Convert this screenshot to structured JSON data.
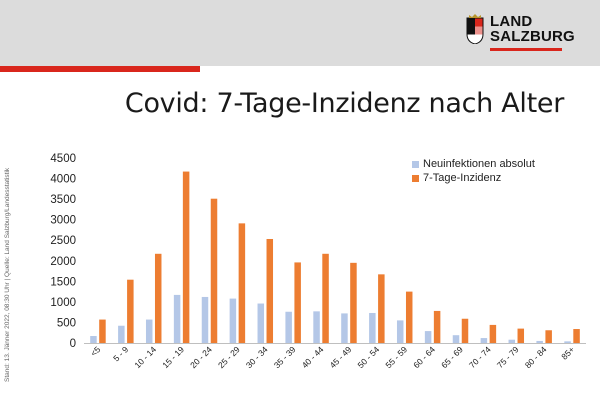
{
  "header": {
    "logo_lines": [
      "LAND",
      "SALZBURG"
    ],
    "accent_color": "#d9261c"
  },
  "page_title": "Covid: 7-Tage-Inzidenz nach Alter",
  "side_note": "Stand: 13. Jänner 2022, 08:30 Uhr | Quelle: Land Salzburg/Landesstatistik",
  "chart_data": {
    "type": "bar",
    "title": "",
    "xlabel": "",
    "ylabel": "",
    "ylim": [
      0,
      4500
    ],
    "yticks": [
      "0",
      "500",
      "1000",
      "1500",
      "2000",
      "2500",
      "3000",
      "3500",
      "4000",
      "4500"
    ],
    "grid": false,
    "legend_position": "top-right",
    "categories": [
      "<5",
      "5 - 9",
      "10 - 14",
      "15 - 19",
      "20 - 24",
      "25 - 29",
      "30 - 34",
      "35 - 39",
      "40 - 44",
      "45 - 49",
      "50 - 54",
      "55 - 59",
      "60 - 64",
      "65 - 69",
      "70 - 74",
      "75 - 79",
      "80 - 84",
      "85+"
    ],
    "series": [
      {
        "name": "Neuinfektionen absolut",
        "color": "#b4c7e7",
        "values": [
          170,
          420,
          570,
          1170,
          1120,
          1080,
          960,
          760,
          770,
          720,
          730,
          550,
          290,
          190,
          120,
          80,
          50,
          40
        ]
      },
      {
        "name": "7-Tage-Inzidenz",
        "color": "#ed7d31",
        "values": [
          570,
          1540,
          2170,
          4170,
          3510,
          2910,
          2530,
          1960,
          2170,
          1950,
          1670,
          1250,
          780,
          590,
          440,
          350,
          310,
          340
        ]
      }
    ]
  }
}
